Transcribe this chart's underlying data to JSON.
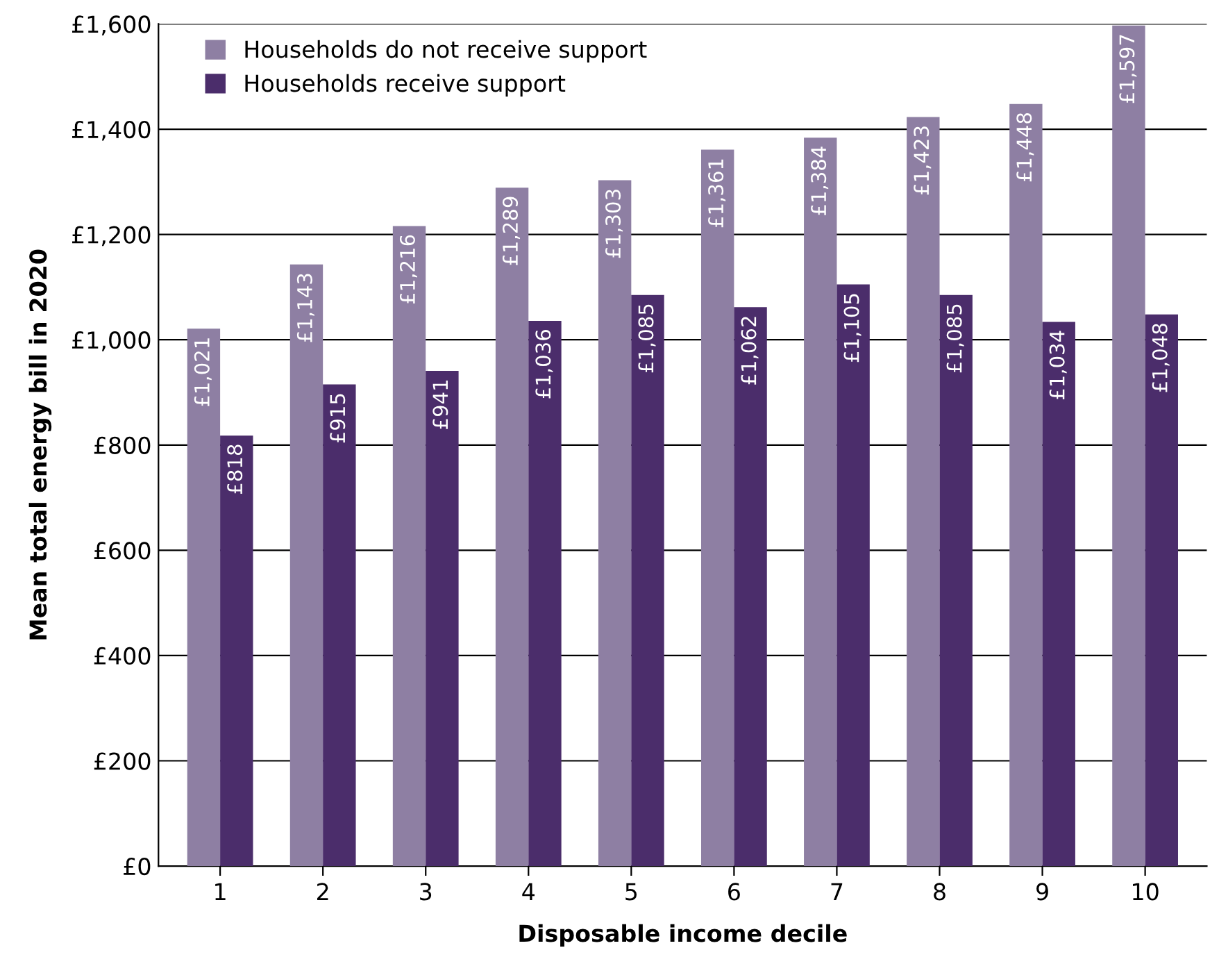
{
  "chart_data": {
    "type": "bar",
    "xlabel": "Disposable income decile",
    "ylabel": "Mean total energy bill in 2020",
    "categories": [
      "1",
      "2",
      "3",
      "4",
      "5",
      "6",
      "7",
      "8",
      "9",
      "10"
    ],
    "series": [
      {
        "name": "Households do not receive support",
        "color": "#8e7fa3",
        "values": [
          1021,
          1143,
          1216,
          1289,
          1303,
          1361,
          1384,
          1423,
          1448,
          1597
        ],
        "value_labels": [
          "£1,021",
          "£1,143",
          "£1,216",
          "£1,289",
          "£1,303",
          "£1,361",
          "£1,384",
          "£1,423",
          "£1,448",
          "£1,597"
        ]
      },
      {
        "name": "Households receive support",
        "color": "#4b2d6b",
        "values": [
          818,
          915,
          941,
          1036,
          1085,
          1062,
          1105,
          1085,
          1034,
          1048
        ],
        "value_labels": [
          "£818",
          "£915",
          "£941",
          "£1,036",
          "£1,085",
          "£1,062",
          "£1,105",
          "£1,085",
          "£1,034",
          "£1,048"
        ]
      }
    ],
    "ylim": [
      0,
      1600
    ],
    "yticks": [
      {
        "value": 0,
        "label": "£0"
      },
      {
        "value": 200,
        "label": "£200"
      },
      {
        "value": 400,
        "label": "£400"
      },
      {
        "value": 600,
        "label": "£600"
      },
      {
        "value": 800,
        "label": "£800"
      },
      {
        "value": 1000,
        "label": "£1,000"
      },
      {
        "value": 1200,
        "label": "£1,200"
      },
      {
        "value": 1400,
        "label": "£1,400"
      },
      {
        "value": 1600,
        "label": "£1,600"
      }
    ],
    "grid": "y",
    "legend": "top left"
  }
}
